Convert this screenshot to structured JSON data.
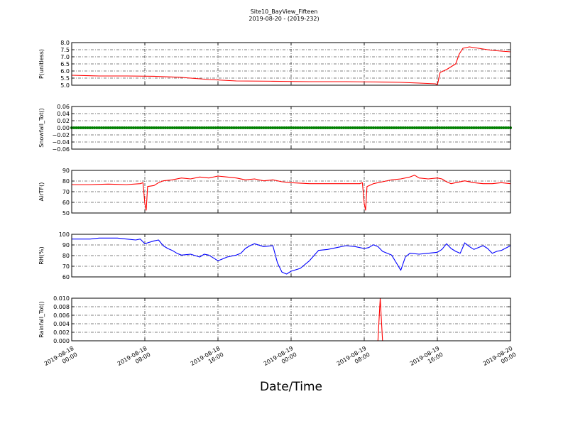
{
  "title": "Site10_BayView_Fifteen",
  "subtitle": "2019-08-20 - (2019-232)",
  "xlabel": "Date/Time",
  "x_ticks": [
    {
      "t": 0,
      "l1": "2019-08-18",
      "l2": "00:00"
    },
    {
      "t": 8,
      "l1": "2019-08-18",
      "l2": "08:00"
    },
    {
      "t": 16,
      "l1": "2019-08-18",
      "l2": "16:00"
    },
    {
      "t": 24,
      "l1": "2019-08-19",
      "l2": "00:00"
    },
    {
      "t": 32,
      "l1": "2019-08-19",
      "l2": "08:00"
    },
    {
      "t": 40,
      "l1": "2019-08-19",
      "l2": "16:00"
    },
    {
      "t": 48,
      "l1": "2019-08-20",
      "l2": "00:00"
    }
  ],
  "chart_data": [
    {
      "type": "line",
      "ylabel": "P(unitless)",
      "color": "#ff0000",
      "ylim": [
        5.0,
        8.0
      ],
      "yticks": [
        "5.0",
        "5.5",
        "6.0",
        "6.5",
        "7.0",
        "7.5",
        "8.0"
      ],
      "grid": true,
      "points": [
        [
          0,
          5.7
        ],
        [
          3,
          5.65
        ],
        [
          6,
          5.65
        ],
        [
          9,
          5.63
        ],
        [
          12,
          5.55
        ],
        [
          15,
          5.4
        ],
        [
          18,
          5.3
        ],
        [
          22,
          5.28
        ],
        [
          26,
          5.25
        ],
        [
          30,
          5.25
        ],
        [
          34,
          5.22
        ],
        [
          36,
          5.2
        ],
        [
          38,
          5.15
        ],
        [
          39.8,
          5.1
        ],
        [
          40,
          5.0
        ],
        [
          40.3,
          5.9
        ],
        [
          41,
          6.1
        ],
        [
          41.5,
          6.3
        ],
        [
          42,
          6.5
        ],
        [
          42.4,
          7.2
        ],
        [
          42.8,
          7.6
        ],
        [
          43.5,
          7.7
        ],
        [
          44.5,
          7.6
        ],
        [
          46,
          7.45
        ],
        [
          48,
          7.35
        ]
      ]
    },
    {
      "type": "line",
      "ylabel": "Snowfall_Tot()",
      "color": "#008000",
      "ylim": [
        -0.06,
        0.06
      ],
      "yticks": [
        "−0.06",
        "−0.04",
        "−0.02",
        "0.00",
        "0.02",
        "0.04",
        "0.06"
      ],
      "grid": true,
      "markers": true,
      "points": [
        [
          0,
          0
        ],
        [
          48,
          0
        ]
      ]
    },
    {
      "type": "line",
      "ylabel": "AirTF()",
      "color": "#ff0000",
      "ylim": [
        45,
        90
      ],
      "yticks": [
        "50",
        "60",
        "70",
        "80",
        "90"
      ],
      "grid": true,
      "points": [
        [
          0,
          75
        ],
        [
          2,
          75
        ],
        [
          4,
          75.5
        ],
        [
          6,
          75
        ],
        [
          7.5,
          76
        ],
        [
          7.8,
          77
        ],
        [
          8,
          55
        ],
        [
          8.15,
          48
        ],
        [
          8.3,
          73
        ],
        [
          9,
          74
        ],
        [
          9.5,
          77
        ],
        [
          10,
          79
        ],
        [
          11,
          80
        ],
        [
          12,
          82
        ],
        [
          13,
          81
        ],
        [
          14,
          83
        ],
        [
          15,
          82
        ],
        [
          16,
          84
        ],
        [
          17,
          83
        ],
        [
          18,
          82
        ],
        [
          19,
          80
        ],
        [
          20,
          81
        ],
        [
          21,
          79
        ],
        [
          22,
          80
        ],
        [
          23,
          78
        ],
        [
          24,
          77
        ],
        [
          26,
          76
        ],
        [
          28,
          76
        ],
        [
          30,
          76
        ],
        [
          31.5,
          76
        ],
        [
          31.8,
          77
        ],
        [
          32,
          55
        ],
        [
          32.15,
          48
        ],
        [
          32.3,
          73
        ],
        [
          33,
          76
        ],
        [
          34,
          78
        ],
        [
          35,
          80
        ],
        [
          36,
          81
        ],
        [
          37,
          83
        ],
        [
          37.5,
          85
        ],
        [
          38,
          82
        ],
        [
          39,
          81
        ],
        [
          40,
          82
        ],
        [
          40.5,
          81
        ],
        [
          41,
          78
        ],
        [
          41.5,
          76
        ],
        [
          42,
          77
        ],
        [
          43,
          79
        ],
        [
          44,
          77
        ],
        [
          45,
          76
        ],
        [
          46,
          76
        ],
        [
          47,
          77
        ],
        [
          48,
          76
        ]
      ]
    },
    {
      "type": "line",
      "ylabel": "RH(%)",
      "color": "#0000ff",
      "ylim": [
        55,
        100
      ],
      "yticks": [
        "60",
        "70",
        "80",
        "90",
        "100"
      ],
      "grid": true,
      "points": [
        [
          0,
          95
        ],
        [
          2,
          95
        ],
        [
          3,
          96
        ],
        [
          4,
          96
        ],
        [
          5,
          96
        ],
        [
          6,
          95
        ],
        [
          7,
          94
        ],
        [
          7.5,
          95
        ],
        [
          8,
          90
        ],
        [
          8.3,
          91
        ],
        [
          9,
          93
        ],
        [
          9.5,
          94
        ],
        [
          10,
          88
        ],
        [
          10.5,
          85
        ],
        [
          11,
          83
        ],
        [
          11.5,
          80
        ],
        [
          12,
          78
        ],
        [
          13,
          79
        ],
        [
          14,
          76
        ],
        [
          14.5,
          79
        ],
        [
          15,
          78
        ],
        [
          15.5,
          75
        ],
        [
          16,
          72
        ],
        [
          16.5,
          74
        ],
        [
          17,
          76
        ],
        [
          18,
          78
        ],
        [
          18.5,
          80
        ],
        [
          19,
          85
        ],
        [
          19.5,
          88
        ],
        [
          20,
          90
        ],
        [
          21,
          87
        ],
        [
          22,
          88
        ],
        [
          22.5,
          70
        ],
        [
          23,
          60
        ],
        [
          23.5,
          58
        ],
        [
          24,
          61
        ],
        [
          25,
          64
        ],
        [
          26,
          72
        ],
        [
          27,
          83
        ],
        [
          28,
          84
        ],
        [
          29,
          86
        ],
        [
          30,
          88
        ],
        [
          31,
          87
        ],
        [
          32,
          85
        ],
        [
          32.5,
          86
        ],
        [
          33,
          89
        ],
        [
          33.5,
          87
        ],
        [
          34,
          82
        ],
        [
          35,
          78
        ],
        [
          35.5,
          70
        ],
        [
          36,
          62
        ],
        [
          36.5,
          76
        ],
        [
          37,
          80
        ],
        [
          38,
          79
        ],
        [
          39,
          80
        ],
        [
          40,
          81
        ],
        [
          40.5,
          84
        ],
        [
          41,
          90
        ],
        [
          41.5,
          85
        ],
        [
          42,
          82
        ],
        [
          42.5,
          80
        ],
        [
          43,
          91
        ],
        [
          43.5,
          87
        ],
        [
          44,
          84
        ],
        [
          45,
          88
        ],
        [
          45.5,
          85
        ],
        [
          46,
          80
        ],
        [
          46.5,
          82
        ],
        [
          47,
          83
        ],
        [
          48,
          88
        ]
      ]
    },
    {
      "type": "line",
      "ylabel": "Rainfall_Tot()",
      "color": "#ff0000",
      "ylim": [
        0,
        0.01
      ],
      "yticks": [
        "0.000",
        "0.002",
        "0.004",
        "0.006",
        "0.008",
        "0.010"
      ],
      "grid": true,
      "points": [
        [
          0,
          0
        ],
        [
          33.5,
          0
        ],
        [
          33.75,
          0.01
        ],
        [
          34,
          0
        ],
        [
          48,
          0
        ]
      ]
    }
  ]
}
